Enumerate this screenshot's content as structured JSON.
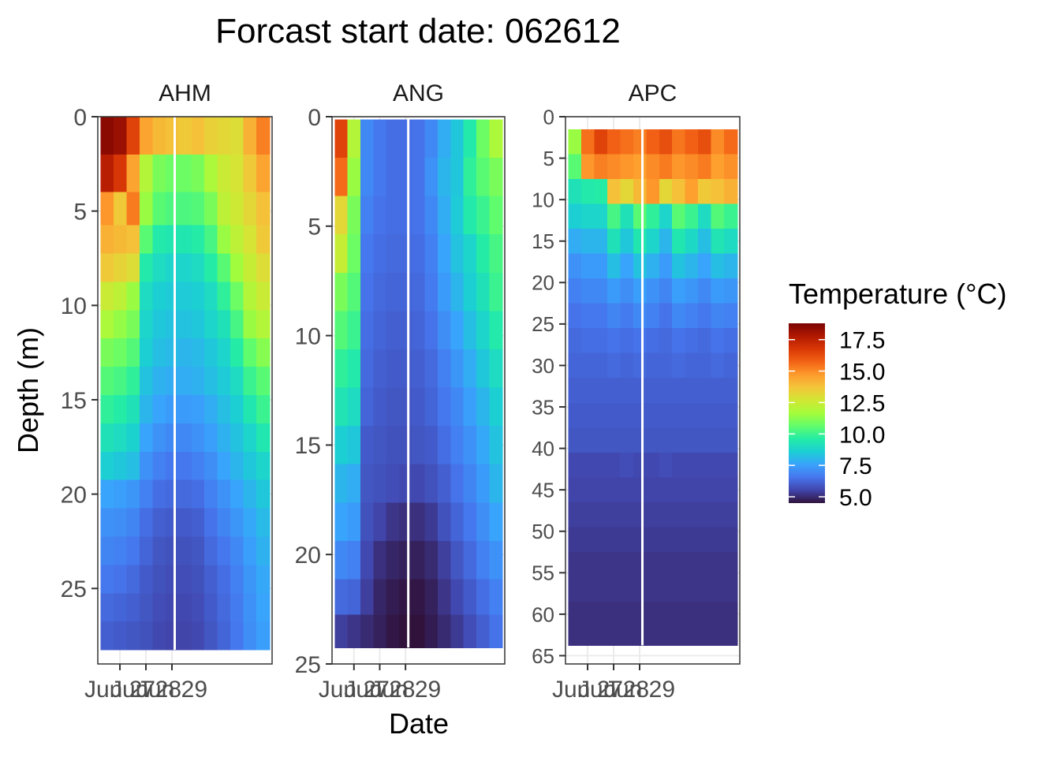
{
  "chart_data": {
    "type": "heatmap",
    "title": "Forcast start date: 062612",
    "xlabel": "Date",
    "ylabel": "Depth (m)",
    "x_tick_labels": [
      "Jun 27",
      "Jun 28",
      "Jun 29"
    ],
    "x_dates": [
      "Jun 26 12h",
      "Jun 26 18h",
      "Jun 27 00h",
      "Jun 27 06h",
      "Jun 27 12h",
      "Jun 27 18h",
      "Jun 28 00h",
      "Jun 28 06h",
      "Jun 28 12h",
      "Jun 28 18h",
      "Jun 29 00h",
      "Jun 29 06h",
      "Jun 29 12h"
    ],
    "legend": {
      "title": "Temperature (°C)",
      "position": "right",
      "range": [
        4.5,
        18.8
      ],
      "ticks": [
        "5.0",
        "7.5",
        "10.0",
        "12.5",
        "15.0",
        "17.5"
      ],
      "colors": [
        "#30123b",
        "#4145ab",
        "#4675ed",
        "#39a2fc",
        "#1bcfd4",
        "#24eca6",
        "#61fc6c",
        "#a4fc3b",
        "#d1e834",
        "#f3c63a",
        "#fe9b2d",
        "#f36315",
        "#d93806",
        "#b11901",
        "#7a0403"
      ]
    },
    "panels": [
      {
        "name": "AHM",
        "ylim": [
          0,
          29
        ],
        "y_ticks": [
          0,
          5,
          10,
          15,
          20,
          25
        ],
        "depths": [
          1,
          3,
          5,
          6.5,
          8,
          9.5,
          11,
          12.5,
          14,
          15.5,
          17,
          18.5,
          20,
          21.5,
          23,
          24.5,
          26,
          27.5
        ],
        "values": [
          [
            18.5,
            18.2,
            16.5,
            14.5,
            14.0,
            13.8,
            13.6,
            13.8,
            13.4,
            13.2,
            13.0,
            14.2,
            15.2
          ],
          [
            17.6,
            16.8,
            14.5,
            12.0,
            11.0,
            10.8,
            10.8,
            11.0,
            11.8,
            12.5,
            12.8,
            13.6,
            14.5
          ],
          [
            14.8,
            13.6,
            15.3,
            11.5,
            10.5,
            10.3,
            10.3,
            10.4,
            11.0,
            12.2,
            12.6,
            13.2,
            13.8
          ],
          [
            14.2,
            14.0,
            13.8,
            10.5,
            9.5,
            9.4,
            9.4,
            9.6,
            10.2,
            11.5,
            12.2,
            12.8,
            13.6
          ],
          [
            13.6,
            13.3,
            13.0,
            9.5,
            9.0,
            8.8,
            8.8,
            9.0,
            9.6,
            10.5,
            11.6,
            12.4,
            13.0
          ],
          [
            12.5,
            12.2,
            11.5,
            9.0,
            8.6,
            8.5,
            8.5,
            8.6,
            9.0,
            9.8,
            10.8,
            12.0,
            12.5
          ],
          [
            11.8,
            11.4,
            11.0,
            8.8,
            8.4,
            8.3,
            8.3,
            8.4,
            8.8,
            9.2,
            10.2,
            11.5,
            12.0
          ],
          [
            11.0,
            10.8,
            10.4,
            8.6,
            8.2,
            8.1,
            8.0,
            8.1,
            8.4,
            8.8,
            9.6,
            10.6,
            11.2
          ],
          [
            10.4,
            10.2,
            9.8,
            8.3,
            7.9,
            7.8,
            7.8,
            7.9,
            8.2,
            8.5,
            9.0,
            10.0,
            10.5
          ],
          [
            9.8,
            9.6,
            9.2,
            8.0,
            7.6,
            7.4,
            7.4,
            7.5,
            7.8,
            8.2,
            8.6,
            9.4,
            10.0
          ],
          [
            9.2,
            9.0,
            8.7,
            7.6,
            7.2,
            7.0,
            7.0,
            7.2,
            7.5,
            7.9,
            8.3,
            8.8,
            9.4
          ],
          [
            8.6,
            8.4,
            8.2,
            7.2,
            6.8,
            6.6,
            6.6,
            6.8,
            7.1,
            7.6,
            8.0,
            8.4,
            8.8
          ],
          [
            7.6,
            7.5,
            7.3,
            6.8,
            6.4,
            6.3,
            6.3,
            6.4,
            6.8,
            7.2,
            7.6,
            8.0,
            8.4
          ],
          [
            7.2,
            7.1,
            6.9,
            6.4,
            6.1,
            6.0,
            6.0,
            6.1,
            6.5,
            6.9,
            7.3,
            7.7,
            8.1
          ],
          [
            6.9,
            6.8,
            6.6,
            6.2,
            5.9,
            5.8,
            5.8,
            5.9,
            6.3,
            6.6,
            7.0,
            7.5,
            7.9
          ],
          [
            6.6,
            6.5,
            6.3,
            6.0,
            5.8,
            5.7,
            5.7,
            5.8,
            6.1,
            6.4,
            6.8,
            7.3,
            7.7
          ],
          [
            6.3,
            6.2,
            6.1,
            5.9,
            5.7,
            5.6,
            5.6,
            5.7,
            6.0,
            6.3,
            6.7,
            7.2,
            7.6
          ],
          [
            6.1,
            6.0,
            5.9,
            5.8,
            5.6,
            5.5,
            5.5,
            5.6,
            5.9,
            6.2,
            6.6,
            7.1,
            7.5
          ]
        ]
      },
      {
        "name": "ANG",
        "ylim": [
          0,
          25
        ],
        "y_ticks": [
          0,
          5,
          10,
          15,
          20,
          25
        ],
        "depths": [
          1,
          2.75,
          4.5,
          6.25,
          8,
          9.75,
          11.5,
          13.25,
          15,
          16.75,
          18.5,
          20.25,
          22,
          23.5
        ],
        "values": [
          [
            16.5,
            12.0,
            7.0,
            6.6,
            6.4,
            6.4,
            6.5,
            7.0,
            7.8,
            8.4,
            9.5,
            10.8,
            11.8
          ],
          [
            15.6,
            11.5,
            7.0,
            6.6,
            6.4,
            6.4,
            6.5,
            7.2,
            8.0,
            8.4,
            9.8,
            10.5,
            11.0
          ],
          [
            13.2,
            11.0,
            6.8,
            6.5,
            6.4,
            6.4,
            6.5,
            7.0,
            7.8,
            8.5,
            9.5,
            10.0,
            10.6
          ],
          [
            12.4,
            10.8,
            6.6,
            6.4,
            6.3,
            6.3,
            6.4,
            6.8,
            7.6,
            8.3,
            8.8,
            9.6,
            10.2
          ],
          [
            11.0,
            10.4,
            6.5,
            6.3,
            6.2,
            6.2,
            6.3,
            6.7,
            7.4,
            8.0,
            8.6,
            9.2,
            10.0
          ],
          [
            10.4,
            10.0,
            6.4,
            6.2,
            6.1,
            6.1,
            6.2,
            6.5,
            7.1,
            7.6,
            8.2,
            8.8,
            9.5
          ],
          [
            9.8,
            9.5,
            6.3,
            6.1,
            6.0,
            6.0,
            6.1,
            6.3,
            6.8,
            7.3,
            7.8,
            8.4,
            9.0
          ],
          [
            9.3,
            9.0,
            6.2,
            6.0,
            5.9,
            5.9,
            6.0,
            6.2,
            6.6,
            7.0,
            7.5,
            8.0,
            8.6
          ],
          [
            8.6,
            8.4,
            6.0,
            5.9,
            5.8,
            5.8,
            5.9,
            6.0,
            6.4,
            6.8,
            7.2,
            7.7,
            8.3
          ],
          [
            8.0,
            7.8,
            5.9,
            5.8,
            5.7,
            5.6,
            5.6,
            5.8,
            6.1,
            6.5,
            6.9,
            7.4,
            8.0
          ],
          [
            7.6,
            7.4,
            5.8,
            5.5,
            5.2,
            5.1,
            5.1,
            5.3,
            5.8,
            6.2,
            6.6,
            7.1,
            7.6
          ],
          [
            7.0,
            6.8,
            5.6,
            5.1,
            4.9,
            4.8,
            4.8,
            5.0,
            5.4,
            5.9,
            6.3,
            6.8,
            7.2
          ],
          [
            6.3,
            6.2,
            5.4,
            4.9,
            4.7,
            4.6,
            4.6,
            4.8,
            5.2,
            5.6,
            6.0,
            6.4,
            6.8
          ],
          [
            5.4,
            5.2,
            5.0,
            4.8,
            4.6,
            4.5,
            4.5,
            4.7,
            5.0,
            5.3,
            5.7,
            6.1,
            6.5
          ]
        ]
      },
      {
        "name": "APC",
        "ylim": [
          0,
          66
        ],
        "y_ticks": [
          0,
          5,
          10,
          15,
          20,
          25,
          30,
          35,
          40,
          45,
          50,
          55,
          60,
          65
        ],
        "depths": [
          3,
          6,
          9,
          12,
          15,
          18,
          21,
          24,
          27,
          30,
          33,
          36,
          39,
          42,
          45,
          48,
          51,
          54,
          57,
          60,
          62.5
        ],
        "values": [
          [
            11.5,
            15.5,
            16.5,
            15.8,
            15.5,
            15.2,
            15.8,
            16.2,
            15.4,
            15.8,
            16.2,
            15.0,
            15.6
          ],
          [
            10.5,
            14.8,
            15.2,
            15.0,
            14.8,
            14.6,
            15.0,
            15.3,
            14.8,
            15.0,
            15.3,
            14.6,
            14.9
          ],
          [
            9.2,
            9.5,
            9.6,
            13.8,
            13.2,
            14.0,
            14.8,
            13.2,
            13.8,
            14.6,
            13.6,
            13.8,
            14.2
          ],
          [
            8.6,
            8.8,
            8.8,
            10.2,
            9.2,
            10.5,
            9.8,
            8.8,
            10.5,
            10.0,
            9.0,
            10.4,
            10.0
          ],
          [
            7.8,
            8.0,
            8.0,
            9.2,
            8.4,
            9.4,
            8.8,
            8.0,
            9.4,
            8.9,
            8.2,
            9.3,
            9.0
          ],
          [
            7.2,
            7.4,
            7.4,
            8.2,
            7.6,
            8.3,
            7.9,
            7.4,
            8.3,
            8.0,
            7.6,
            8.2,
            8.0
          ],
          [
            6.8,
            7.0,
            7.0,
            7.4,
            7.1,
            7.5,
            7.2,
            6.9,
            7.5,
            7.3,
            7.0,
            7.4,
            7.3
          ],
          [
            6.5,
            6.6,
            6.6,
            6.9,
            6.7,
            7.0,
            6.8,
            6.5,
            7.0,
            6.8,
            6.6,
            6.9,
            6.8
          ],
          [
            6.3,
            6.4,
            6.4,
            6.5,
            6.4,
            6.5,
            6.4,
            6.3,
            6.5,
            6.4,
            6.3,
            6.5,
            6.4
          ],
          [
            6.2,
            6.2,
            6.2,
            6.3,
            6.2,
            6.3,
            6.2,
            6.2,
            6.3,
            6.2,
            6.2,
            6.3,
            6.2
          ],
          [
            6.1,
            6.1,
            6.1,
            6.1,
            6.1,
            6.1,
            6.1,
            6.1,
            6.1,
            6.1,
            6.1,
            6.1,
            6.1
          ],
          [
            6.0,
            6.0,
            6.0,
            6.0,
            6.0,
            6.0,
            6.0,
            6.0,
            6.0,
            6.0,
            6.0,
            6.0,
            6.0
          ],
          [
            5.9,
            5.9,
            5.9,
            5.9,
            5.9,
            5.9,
            5.9,
            5.9,
            5.9,
            5.9,
            5.9,
            5.9,
            5.9
          ],
          [
            5.6,
            5.6,
            5.6,
            5.6,
            5.7,
            5.6,
            5.6,
            5.7,
            5.6,
            5.6,
            5.6,
            5.6,
            5.6
          ],
          [
            5.5,
            5.5,
            5.5,
            5.5,
            5.5,
            5.5,
            5.5,
            5.5,
            5.5,
            5.5,
            5.5,
            5.5,
            5.5
          ],
          [
            5.4,
            5.4,
            5.4,
            5.4,
            5.4,
            5.4,
            5.4,
            5.4,
            5.4,
            5.4,
            5.4,
            5.4,
            5.4
          ],
          [
            5.3,
            5.3,
            5.3,
            5.3,
            5.3,
            5.3,
            5.3,
            5.3,
            5.3,
            5.3,
            5.3,
            5.3,
            5.3
          ],
          [
            5.2,
            5.2,
            5.2,
            5.2,
            5.2,
            5.2,
            5.2,
            5.2,
            5.2,
            5.2,
            5.2,
            5.2,
            5.2
          ],
          [
            5.2,
            5.2,
            5.2,
            5.2,
            5.2,
            5.2,
            5.2,
            5.2,
            5.2,
            5.2,
            5.2,
            5.2,
            5.2
          ],
          [
            5.1,
            5.1,
            5.1,
            5.1,
            5.1,
            5.1,
            5.1,
            5.1,
            5.1,
            5.1,
            5.1,
            5.1,
            5.1
          ],
          [
            5.1,
            5.1,
            5.1,
            5.1,
            5.1,
            5.1,
            5.1,
            5.1,
            5.1,
            5.1,
            5.1,
            5.1,
            5.1
          ]
        ]
      }
    ]
  }
}
